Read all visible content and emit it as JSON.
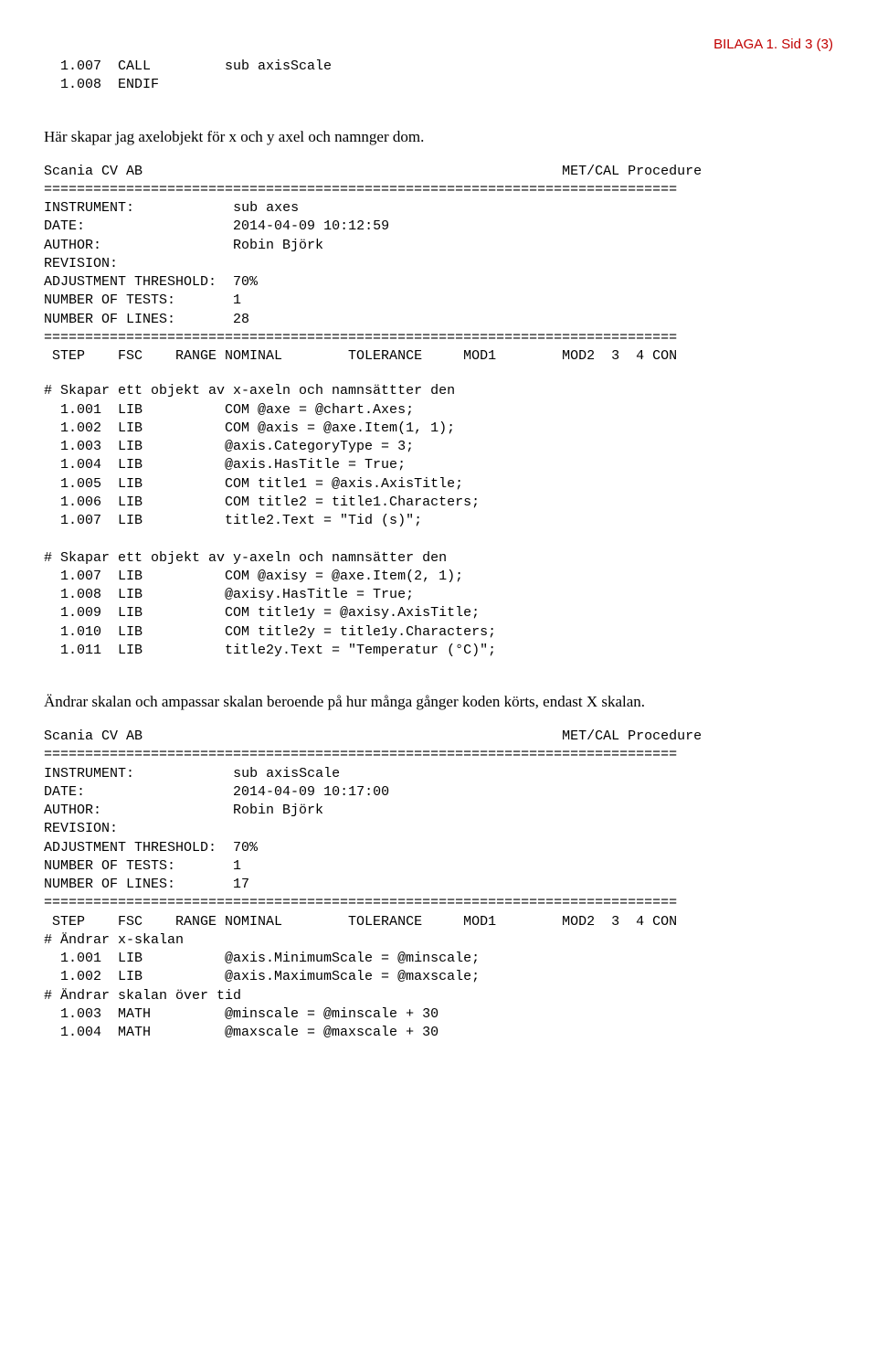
{
  "header": {
    "page_marker": "BILAGA 1. Sid 3 (3)"
  },
  "block_a": {
    "l1": "  1.007  CALL         sub axisScale",
    "l2": "  1.008  ENDIF"
  },
  "prose1": "Här skapar jag axelobjekt för x och y axel och namnger dom.",
  "meta1": {
    "left": "Scania CV AB",
    "right": "MET/CAL Procedure",
    "sep": "=============================================================================",
    "instrument_label": "INSTRUMENT:",
    "instrument_value": "sub axes",
    "date_label": "DATE:",
    "date_value": "2014-04-09 10:12:59",
    "author_label": "AUTHOR:",
    "author_value": "Robin Björk",
    "revision_label": "REVISION:",
    "threshold_label": "ADJUSTMENT THRESHOLD:",
    "threshold_value": "70%",
    "tests_label": "NUMBER OF TESTS:",
    "tests_value": "1",
    "lines_label": "NUMBER OF LINES:",
    "lines_value": "28",
    "cols": " STEP    FSC    RANGE NOMINAL        TOLERANCE     MOD1        MOD2  3  4 CON"
  },
  "block_b": {
    "c1": "# Skapar ett objekt av x-axeln och namnsättter den",
    "l1": "  1.001  LIB          COM @axe = @chart.Axes;",
    "l2": "  1.002  LIB          COM @axis = @axe.Item(1, 1);",
    "l3": "  1.003  LIB          @axis.CategoryType = 3;",
    "l4": "  1.004  LIB          @axis.HasTitle = True;",
    "l5": "  1.005  LIB          COM title1 = @axis.AxisTitle;",
    "l6": "  1.006  LIB          COM title2 = title1.Characters;",
    "l7": "  1.007  LIB          title2.Text = \"Tid (s)\";",
    "c2": "# Skapar ett objekt av y-axeln och namnsätter den",
    "l8": "  1.007  LIB          COM @axisy = @axe.Item(2, 1);",
    "l9": "  1.008  LIB          @axisy.HasTitle = True;",
    "l10": "  1.009  LIB          COM title1y = @axisy.AxisTitle;",
    "l11": "  1.010  LIB          COM title2y = title1y.Characters;",
    "l12": "  1.011  LIB          title2y.Text = \"Temperatur (°C)\";"
  },
  "prose2": "Ändrar skalan och ampassar skalan beroende på hur många gånger koden körts, endast X skalan.",
  "meta2": {
    "left": "Scania CV AB",
    "right": "MET/CAL Procedure",
    "sep": "=============================================================================",
    "instrument_label": "INSTRUMENT:",
    "instrument_value": "sub axisScale",
    "date_label": "DATE:",
    "date_value": "2014-04-09 10:17:00",
    "author_label": "AUTHOR:",
    "author_value": "Robin Björk",
    "revision_label": "REVISION:",
    "threshold_label": "ADJUSTMENT THRESHOLD:",
    "threshold_value": "70%",
    "tests_label": "NUMBER OF TESTS:",
    "tests_value": "1",
    "lines_label": "NUMBER OF LINES:",
    "lines_value": "17",
    "cols": " STEP    FSC    RANGE NOMINAL        TOLERANCE     MOD1        MOD2  3  4 CON"
  },
  "block_c": {
    "c1": "# Ändrar x-skalan",
    "l1": "  1.001  LIB          @axis.MinimumScale = @minscale;",
    "l2": "  1.002  LIB          @axis.MaximumScale = @maxscale;",
    "c2": "# Ändrar skalan över tid",
    "l3": "  1.003  MATH         @minscale = @minscale + 30",
    "l4": "  1.004  MATH         @maxscale = @maxscale + 30"
  }
}
